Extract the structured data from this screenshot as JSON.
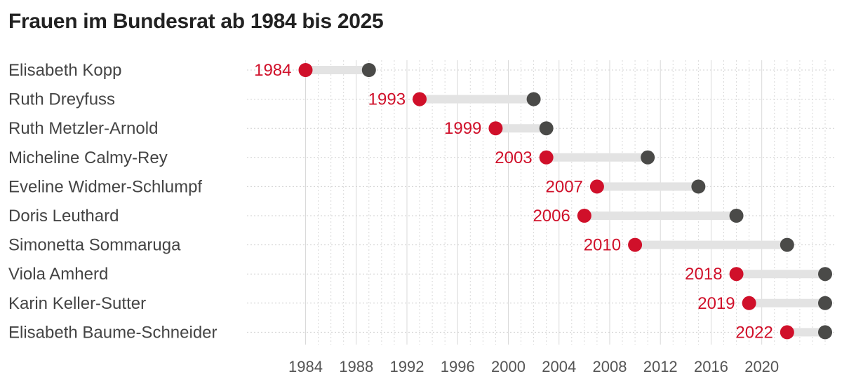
{
  "chart_data": {
    "type": "dumbbell",
    "title": "Frauen im Bundesrat ab 1984 bis 2025",
    "xlim": [
      1984,
      2025
    ],
    "x_ticks": [
      1984,
      1988,
      1992,
      1996,
      2000,
      2004,
      2008,
      2012,
      2016,
      2020
    ],
    "grid": true,
    "colors": {
      "start": "#d0102a",
      "end": "#4a4a48",
      "bar": "#e3e3e3",
      "grid": "#d9d9d9"
    },
    "series": [
      {
        "name": "Elisabeth Kopp",
        "start": 1984,
        "end": 1989
      },
      {
        "name": "Ruth Dreyfuss",
        "start": 1993,
        "end": 2002
      },
      {
        "name": "Ruth Metzler-Arnold",
        "start": 1999,
        "end": 2003
      },
      {
        "name": "Micheline Calmy-Rey",
        "start": 2003,
        "end": 2011
      },
      {
        "name": "Eveline Widmer-Schlumpf",
        "start": 2007,
        "end": 2015
      },
      {
        "name": "Doris Leuthard",
        "start": 2006,
        "end": 2018
      },
      {
        "name": "Simonetta Sommaruga",
        "start": 2010,
        "end": 2022
      },
      {
        "name": "Viola Amherd",
        "start": 2018,
        "end": 2025
      },
      {
        "name": "Karin Keller-Sutter",
        "start": 2019,
        "end": 2025
      },
      {
        "name": "Elisabeth Baume-Schneider",
        "start": 2022,
        "end": 2025
      }
    ]
  }
}
